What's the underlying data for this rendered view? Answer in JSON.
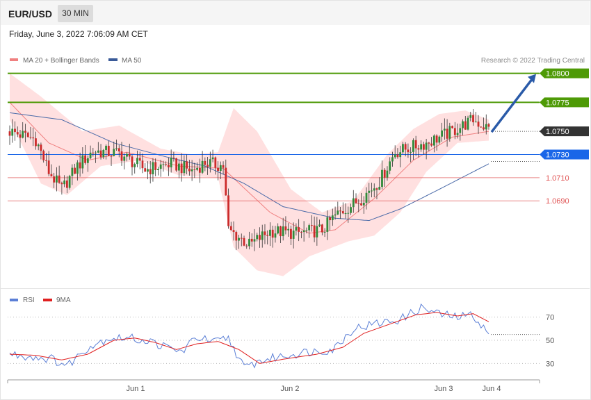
{
  "header": {
    "symbol": "EUR/USD",
    "timeframe": "30 MIN",
    "datetime": "Friday, June 3, 2022 7:06:09 AM CET"
  },
  "legend": {
    "ma20_bb": "MA 20 + Bollinger Bands",
    "ma50": "MA 50",
    "rsi": "RSI",
    "rsi_ma": "9MA"
  },
  "credit": "Research © 2022 Trading Central",
  "colors": {
    "resistance": "#4e9a06",
    "support": "#e05555",
    "pivot": "#1a66e8",
    "current": "#333333",
    "candle_up": "#2f8a3a",
    "candle_down": "#cc2a2a",
    "bollinger_fill": "#ffd6d6",
    "ma20": "#f08080",
    "ma50": "#4a6aa8",
    "rsi": "#5b7fd6",
    "rsi_ma": "#e02020",
    "arrow": "#2a5aa8"
  },
  "chart_data": [
    {
      "type": "candlestick",
      "instrument": "EUR/USD",
      "timeframe": "30 MIN",
      "ylim": [
        1.062,
        1.081
      ],
      "x_ticks": [
        "Jun 1",
        "Jun 2",
        "Jun 3",
        "Jun 4"
      ],
      "price_levels": [
        {
          "label": "1.0800",
          "value": 1.08,
          "kind": "resistance"
        },
        {
          "label": "1.0775",
          "value": 1.0775,
          "kind": "resistance"
        },
        {
          "label": "1.0750",
          "value": 1.075,
          "kind": "current"
        },
        {
          "label": "1.0730",
          "value": 1.073,
          "kind": "pivot"
        },
        {
          "label": "1.0710",
          "value": 1.071,
          "kind": "support"
        },
        {
          "label": "1.0690",
          "value": 1.069,
          "kind": "support"
        }
      ],
      "arrow": {
        "from": 1.075,
        "to": 1.08
      },
      "waypoints": [
        [
          0,
          1.075
        ],
        [
          10,
          1.0743
        ],
        [
          15,
          1.0715
        ],
        [
          20,
          1.07
        ],
        [
          26,
          1.072
        ],
        [
          32,
          1.0733
        ],
        [
          42,
          1.0731
        ],
        [
          52,
          1.0717
        ],
        [
          62,
          1.0722
        ],
        [
          70,
          1.0716
        ],
        [
          75,
          1.0723
        ],
        [
          82,
          1.072
        ],
        [
          84,
          1.0665
        ],
        [
          92,
          1.0652
        ],
        [
          100,
          1.0664
        ],
        [
          110,
          1.0662
        ],
        [
          120,
          1.0665
        ],
        [
          125,
          1.0677
        ],
        [
          135,
          1.0692
        ],
        [
          142,
          1.0707
        ],
        [
          148,
          1.0732
        ],
        [
          160,
          1.074
        ],
        [
          170,
          1.075
        ],
        [
          178,
          1.076
        ],
        [
          184,
          1.0752
        ]
      ],
      "ma50": [
        [
          0,
          1.0766
        ],
        [
          20,
          1.076
        ],
        [
          40,
          1.074
        ],
        [
          60,
          1.0728
        ],
        [
          75,
          1.072
        ],
        [
          90,
          1.0705
        ],
        [
          105,
          1.0685
        ],
        [
          125,
          1.0675
        ],
        [
          138,
          1.0673
        ],
        [
          150,
          1.0683
        ],
        [
          165,
          1.07
        ],
        [
          184,
          1.0722
        ]
      ],
      "ma20": [
        [
          0,
          1.0775
        ],
        [
          15,
          1.074
        ],
        [
          30,
          1.0725
        ],
        [
          45,
          1.0732
        ],
        [
          65,
          1.072
        ],
        [
          82,
          1.0718
        ],
        [
          100,
          1.068
        ],
        [
          115,
          1.0662
        ],
        [
          125,
          1.0665
        ],
        [
          140,
          1.0692
        ],
        [
          155,
          1.0725
        ],
        [
          170,
          1.0745
        ],
        [
          184,
          1.075
        ]
      ],
      "bollinger": {
        "upper": [
          [
            0,
            1.08
          ],
          [
            12,
            1.078
          ],
          [
            28,
            1.075
          ],
          [
            42,
            1.0755
          ],
          [
            58,
            1.0735
          ],
          [
            70,
            1.073
          ],
          [
            80,
            1.0732
          ],
          [
            86,
            1.077
          ],
          [
            95,
            1.075
          ],
          [
            108,
            1.07
          ],
          [
            120,
            1.068
          ],
          [
            132,
            1.069
          ],
          [
            145,
            1.073
          ],
          [
            155,
            1.0752
          ],
          [
            165,
            1.0765
          ],
          [
            175,
            1.0768
          ],
          [
            184,
            1.076
          ]
        ],
        "lower": [
          [
            0,
            1.076
          ],
          [
            12,
            1.0705
          ],
          [
            22,
            1.0695
          ],
          [
            35,
            1.072
          ],
          [
            50,
            1.0725
          ],
          [
            65,
            1.0712
          ],
          [
            80,
            1.071
          ],
          [
            86,
            1.065
          ],
          [
            95,
            1.063
          ],
          [
            105,
            1.0625
          ],
          [
            115,
            1.0642
          ],
          [
            130,
            1.0655
          ],
          [
            140,
            1.066
          ],
          [
            150,
            1.068
          ],
          [
            160,
            1.0715
          ],
          [
            172,
            1.074
          ],
          [
            184,
            1.0742
          ]
        ]
      }
    },
    {
      "type": "line",
      "title": "RSI",
      "ylim": [
        20,
        80
      ],
      "y_ticks": [
        70,
        50,
        30
      ],
      "series": [
        {
          "name": "RSI",
          "values": [
            [
              0,
              38
            ],
            [
              8,
              36
            ],
            [
              16,
              34
            ],
            [
              22,
              28
            ],
            [
              30,
              44
            ],
            [
              38,
              52
            ],
            [
              46,
              52
            ],
            [
              54,
              49
            ],
            [
              60,
              44
            ],
            [
              66,
              40
            ],
            [
              72,
              53
            ],
            [
              78,
              48
            ],
            [
              84,
              52
            ],
            [
              90,
              26
            ],
            [
              96,
              32
            ],
            [
              104,
              36
            ],
            [
              114,
              40
            ],
            [
              124,
              42
            ],
            [
              132,
              60
            ],
            [
              140,
              64
            ],
            [
              150,
              68
            ],
            [
              158,
              78
            ],
            [
              166,
              72
            ],
            [
              172,
              70
            ],
            [
              178,
              72
            ],
            [
              184,
              55
            ]
          ]
        },
        {
          "name": "9MA",
          "values": [
            [
              0,
              38
            ],
            [
              10,
              37
            ],
            [
              20,
              33
            ],
            [
              30,
              38
            ],
            [
              40,
              50
            ],
            [
              48,
              52
            ],
            [
              56,
              48
            ],
            [
              64,
              42
            ],
            [
              72,
              47
            ],
            [
              80,
              49
            ],
            [
              88,
              42
            ],
            [
              96,
              30
            ],
            [
              106,
              34
            ],
            [
              118,
              38
            ],
            [
              128,
              44
            ],
            [
              136,
              56
            ],
            [
              146,
              64
            ],
            [
              156,
              72
            ],
            [
              164,
              74
            ],
            [
              172,
              71
            ],
            [
              178,
              73
            ],
            [
              184,
              66
            ]
          ]
        }
      ],
      "last_value": 55
    }
  ]
}
